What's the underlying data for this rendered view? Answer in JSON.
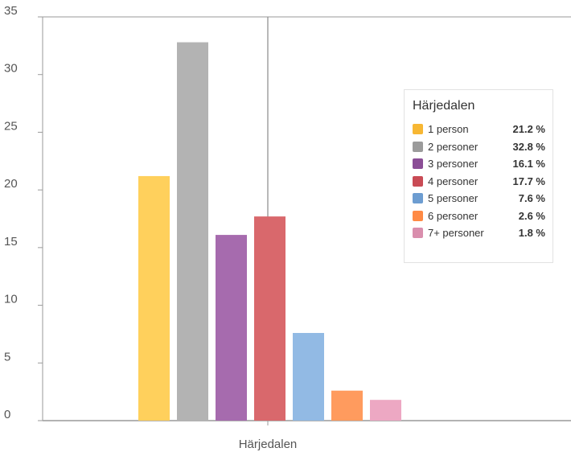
{
  "chart_data": {
    "type": "bar",
    "categories": [
      "Härjedalen"
    ],
    "series": [
      {
        "name": "1 person",
        "values": [
          21.2
        ],
        "color": "#FFD05C",
        "legend_color": "#F7B733",
        "label": "21.2 %"
      },
      {
        "name": "2 personer",
        "values": [
          32.8
        ],
        "color": "#B3B3B3",
        "legend_color": "#9B9B9B",
        "label": "32.8 %"
      },
      {
        "name": "3 personer",
        "values": [
          16.1
        ],
        "color": "#A66BAE",
        "legend_color": "#8B4E96",
        "label": "16.1 %"
      },
      {
        "name": "4 personer",
        "values": [
          17.7
        ],
        "color": "#D9686C",
        "legend_color": "#C94B55",
        "label": "17.7 %"
      },
      {
        "name": "5 personer",
        "values": [
          7.6
        ],
        "color": "#92BAE4",
        "legend_color": "#6D9DD1",
        "label": "7.6 %"
      },
      {
        "name": "6 personer",
        "values": [
          2.6
        ],
        "color": "#FF9B5E",
        "legend_color": "#FF8A45",
        "label": "2.6 %"
      },
      {
        "name": "7+ personer",
        "values": [
          1.8
        ],
        "color": "#EDA8C3",
        "legend_color": "#D98EAD",
        "label": "1.8 %"
      }
    ],
    "yticks": [
      "0",
      "5",
      "10",
      "15",
      "20",
      "25",
      "30",
      "35"
    ],
    "ylim": [
      0,
      35
    ],
    "legend_title": "Härjedalen",
    "legend_position": "top-right",
    "grid": false
  }
}
